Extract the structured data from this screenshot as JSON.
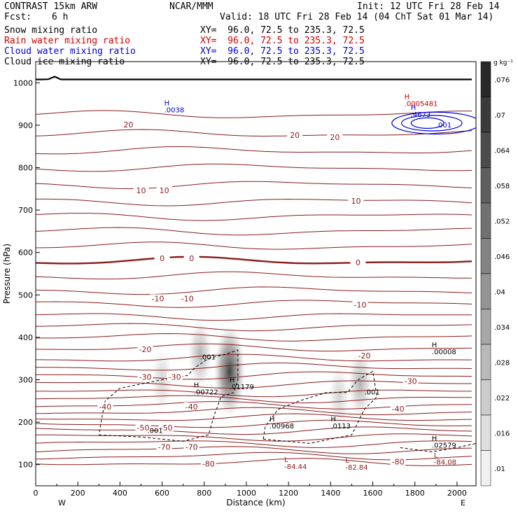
{
  "header": {
    "left_title": "CONTRAST 15km ARW",
    "center_title": "NCAR/MMM",
    "init": "Init: 12 UTC Fri 28 Feb 14",
    "fcst_label": "Fcst:",
    "fcst_value": "6 h",
    "valid": "Valid: 18 UTC Fri 28 Feb 14 (04 ChT Sat 01 Mar 14)",
    "fields": [
      {
        "name": "Snow mixing ratio",
        "xy": "XY=  96.0, 72.5 to 235.3, 72.5",
        "color": "#000000"
      },
      {
        "name": "Rain water mixing ratio",
        "xy": "XY=  96.0, 72.5 to 235.3, 72.5",
        "color": "#cc0000"
      },
      {
        "name": "Cloud water mixing ratio",
        "xy": "XY=  96.0, 72.5 to 235.3, 72.5",
        "color": "#0000cc"
      },
      {
        "name": "Cloud ice mixing ratio",
        "xy": "XY=  96.0, 72.5 to 235.3, 72.5",
        "color": "#000000"
      }
    ]
  },
  "chart_data": {
    "type": "cross-section contour",
    "xlabel": "Distance (km)",
    "ylabel": "Pressure (hPa)",
    "xlim": [
      0,
      2090
    ],
    "ylim": [
      1050,
      50
    ],
    "x_ticks": [
      0,
      200,
      400,
      600,
      800,
      1000,
      1200,
      1400,
      1600,
      1800,
      2000
    ],
    "y_ticks": [
      100,
      200,
      300,
      400,
      500,
      600,
      700,
      800,
      900,
      1000
    ],
    "direction_labels": {
      "left": "W",
      "right": "E"
    },
    "colorbar": {
      "unit": "g kg⁻¹",
      "ticks": [
        ".01",
        ".016",
        ".022",
        ".028",
        ".034",
        ".04",
        ".046",
        ".052",
        ".058",
        ".064",
        ".07",
        ".076"
      ]
    },
    "temperature_contours": {
      "color": "#8b1a1a",
      "labels": [
        {
          "text": "-80",
          "x": 820,
          "p": 100
        },
        {
          "text": "-80",
          "x": 1720,
          "p": 105
        },
        {
          "text": "-70",
          "x": 610,
          "p": 140
        },
        {
          "text": "-70",
          "x": 740,
          "p": 140
        },
        {
          "text": "-50",
          "x": 510,
          "p": 185
        },
        {
          "text": "-50",
          "x": 620,
          "p": 185
        },
        {
          "text": "-40",
          "x": 330,
          "p": 235
        },
        {
          "text": "-40",
          "x": 740,
          "p": 235
        },
        {
          "text": "-40",
          "x": 1720,
          "p": 230
        },
        {
          "text": "-30",
          "x": 520,
          "p": 305
        },
        {
          "text": "-30",
          "x": 660,
          "p": 305
        },
        {
          "text": "-30",
          "x": 1780,
          "p": 295
        },
        {
          "text": "-20",
          "x": 520,
          "p": 370
        },
        {
          "text": "-20",
          "x": 1560,
          "p": 355
        },
        {
          "text": "-10",
          "x": 580,
          "p": 490
        },
        {
          "text": "-10",
          "x": 720,
          "p": 490
        },
        {
          "text": "-10",
          "x": 1540,
          "p": 475
        },
        {
          "text": "0",
          "x": 600,
          "p": 585
        },
        {
          "text": "0",
          "x": 740,
          "p": 585
        },
        {
          "text": "0",
          "x": 1530,
          "p": 575
        },
        {
          "text": "10",
          "x": 500,
          "p": 745
        },
        {
          "text": "10",
          "x": 610,
          "p": 745
        },
        {
          "text": "10",
          "x": 1520,
          "p": 720
        },
        {
          "text": "20",
          "x": 440,
          "p": 900
        },
        {
          "text": "20",
          "x": 1230,
          "p": 875
        },
        {
          "text": "20",
          "x": 1420,
          "p": 870
        }
      ]
    },
    "extrema": [
      {
        "type": "L",
        "value": "-84.44",
        "x": 1180,
        "p": 90,
        "color": "#8b1a1a"
      },
      {
        "type": "L",
        "value": "-82.84",
        "x": 1470,
        "p": 88,
        "color": "#8b1a1a"
      },
      {
        "type": "L",
        "value": "-84.08",
        "x": 1890,
        "p": 100,
        "color": "#8b1a1a"
      },
      {
        "type": "H",
        "value": ".02579",
        "x": 1880,
        "p": 140,
        "color": "#000000"
      },
      {
        "type": "H",
        "value": ".00968",
        "x": 1110,
        "p": 185,
        "color": "#000000"
      },
      {
        "type": "H",
        "value": ".0113",
        "x": 1400,
        "p": 185,
        "color": "#000000"
      },
      {
        "type": "H",
        "value": ".00722",
        "x": 750,
        "p": 265,
        "color": "#000000"
      },
      {
        "type": "H",
        "value": ".01179",
        "x": 920,
        "p": 278,
        "color": "#000000"
      },
      {
        "type": "H",
        "value": ".00008",
        "x": 1880,
        "p": 360,
        "color": "#000000"
      },
      {
        "type": "H",
        "value": ".0038",
        "x": 610,
        "p": 930,
        "color": "#0000cc"
      },
      {
        "type": "H",
        "value": ".4673",
        "x": 1780,
        "p": 920,
        "color": "#0000cc"
      },
      {
        "type": "H",
        "value": ".0005481",
        "x": 1750,
        "p": 945,
        "color": "#cc0000"
      }
    ],
    "dashed_contour_labels": [
      {
        "text": ".001",
        "x": 530,
        "p": 175
      },
      {
        "text": ".001",
        "x": 780,
        "p": 348
      },
      {
        "text": ".001",
        "x": 1560,
        "p": 265
      }
    ],
    "cloud_water_label": {
      "text": ".001",
      "x": 1900,
      "p": 895
    },
    "snow_blobs": [
      {
        "x": 780,
        "p": 360,
        "intensity": 0.35
      },
      {
        "x": 920,
        "p": 320,
        "intensity": 0.85
      },
      {
        "x": 600,
        "p": 300,
        "intensity": 0.2
      },
      {
        "x": 1540,
        "p": 290,
        "intensity": 0.35
      },
      {
        "x": 1440,
        "p": 260,
        "intensity": 0.2
      }
    ]
  }
}
